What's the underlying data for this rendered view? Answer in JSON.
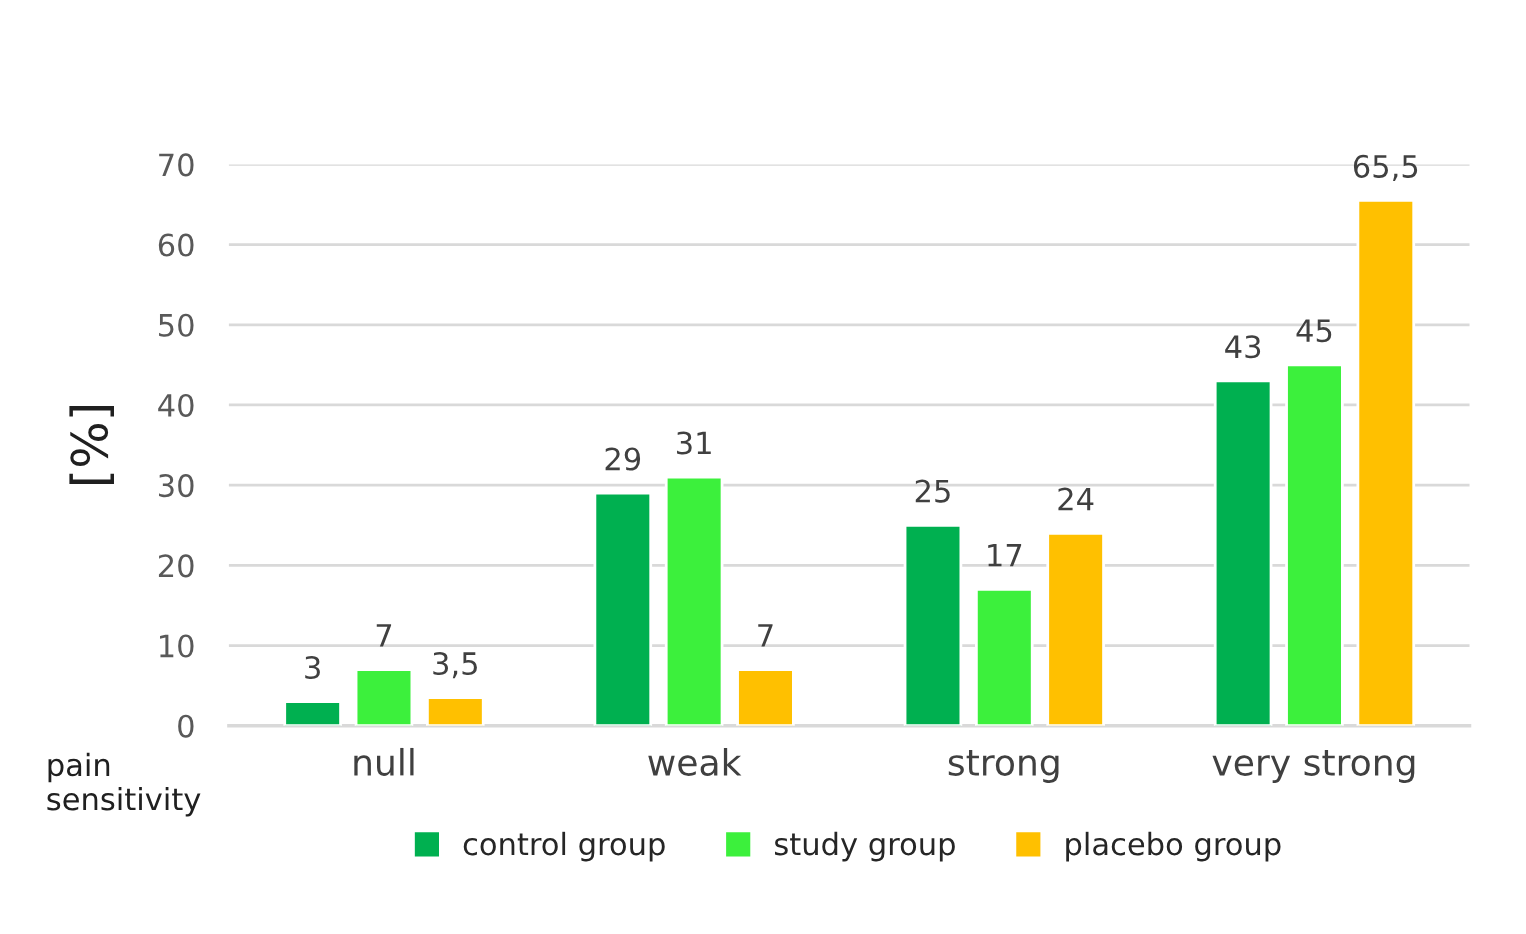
{
  "chart_data": {
    "type": "bar",
    "ylabel": "[%]",
    "categories": [
      "null",
      "weak",
      "strong",
      "very strong"
    ],
    "series": [
      {
        "name": "control group",
        "color": "#00b050",
        "values": [
          3,
          29,
          25,
          43
        ],
        "value_labels": [
          "3",
          "29",
          "25",
          "43"
        ]
      },
      {
        "name": "study group",
        "color": "#3cf03c",
        "values": [
          7,
          31,
          17,
          45
        ],
        "value_labels": [
          "7",
          "31",
          "17",
          "45"
        ]
      },
      {
        "name": "placebo group",
        "color": "#ffc000",
        "values": [
          3.5,
          7,
          24,
          65.5
        ],
        "value_labels": [
          "3,5",
          "7",
          "24",
          "65,5"
        ]
      }
    ],
    "ylim": [
      0,
      70
    ],
    "yticks": [
      0,
      10,
      20,
      30,
      40,
      50,
      60,
      70
    ],
    "grid": "y",
    "legend": "bottom",
    "annotations": [
      "pain sensitivity"
    ]
  }
}
